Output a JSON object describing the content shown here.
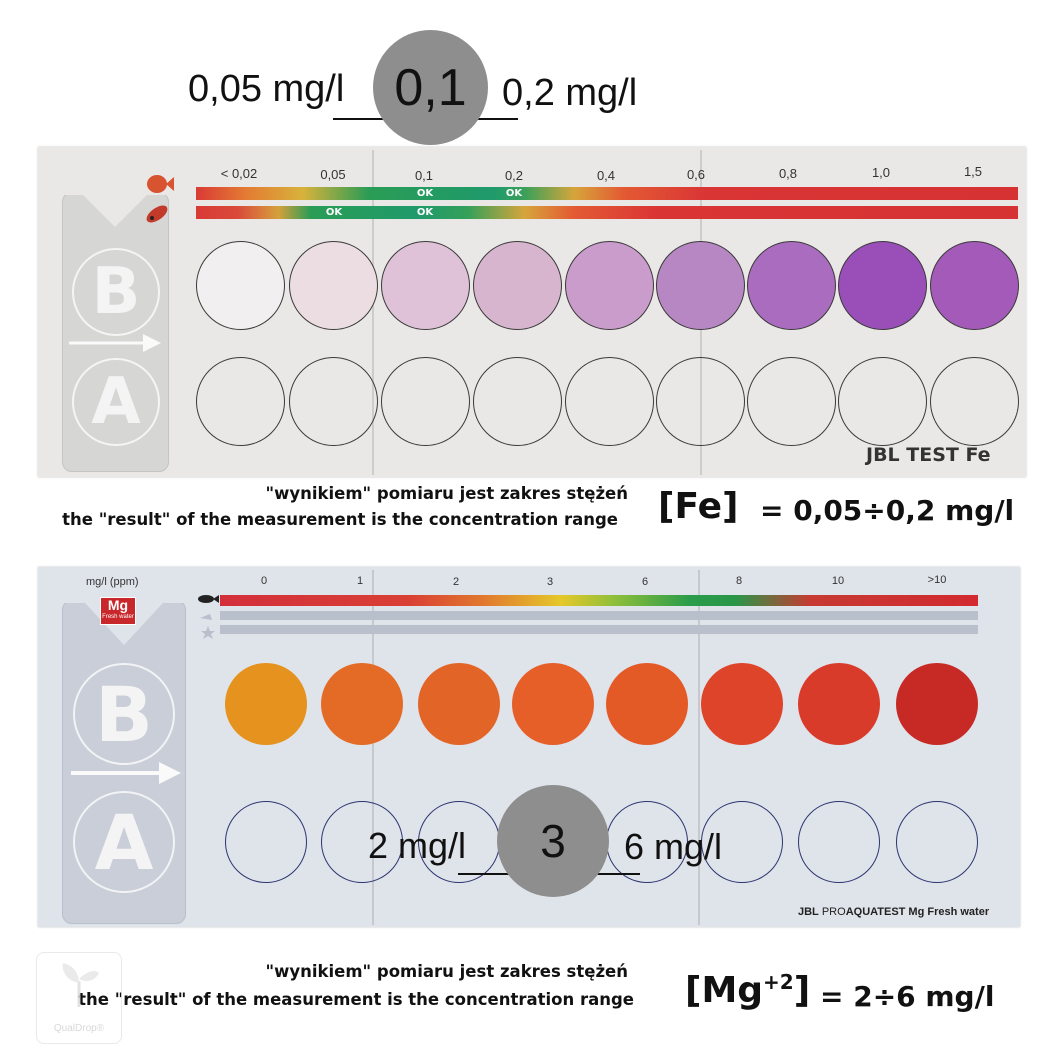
{
  "fe": {
    "summary": {
      "low": "0,05 mg/l",
      "value": "0,1",
      "high": "0,2 mg/l"
    },
    "scale": [
      "< 0,02",
      "0,05",
      "0,1",
      "0,2",
      "0,4",
      "0,6",
      "0,8",
      "1,0",
      "1,5"
    ],
    "ok_top": [
      "OK",
      "OK"
    ],
    "ok_bottom": [
      "OK",
      "OK"
    ],
    "handle_letters": [
      "B",
      "A"
    ],
    "brand": "JBL TEST Fe",
    "swatch_colors": [
      "#f1eff0",
      "#ecdde3",
      "#dfc2d8",
      "#d7b5cf",
      "#c99ccb",
      "#b787c4",
      "#aa6cbe",
      "#9a4fb8",
      "#a45ab9"
    ],
    "note_pl": "\"wynikiem\" pomiaru jest zakres stężeń",
    "note_en": "the \"result\" of the measurement is the concentration range",
    "result_label": "[Fe]",
    "result_value": "= 0,05÷0,2 mg/l"
  },
  "mg": {
    "unit_label": "mg/l (ppm)",
    "badge": "Mg",
    "badge_sub": "Fresh water",
    "scale": [
      "0",
      "1",
      "2",
      "3",
      "6",
      "8",
      "10",
      ">10"
    ],
    "handle_letters": [
      "B",
      "A"
    ],
    "summary": {
      "low": "2 mg/l",
      "value": "3",
      "high": "6 mg/l"
    },
    "brand_prefix": "JBL",
    "brand_pro": "PRO",
    "brand_rest": "AQUATEST Mg Fresh water",
    "swatch_colors": [
      "#e5921e",
      "#e36b25",
      "#e36427",
      "#e65e28",
      "#e45a27",
      "#de442a",
      "#d93b2a",
      "#c72a25"
    ],
    "note_pl": "\"wynikiem\" pomiaru jest zakres stężeń",
    "note_en": "the \"result\" of the measurement is the concentration range",
    "result_label": "[Mg",
    "result_sup": "+2",
    "result_close": "]",
    "result_value": "= 2÷6 mg/l"
  },
  "watermark": "QualDrop®"
}
